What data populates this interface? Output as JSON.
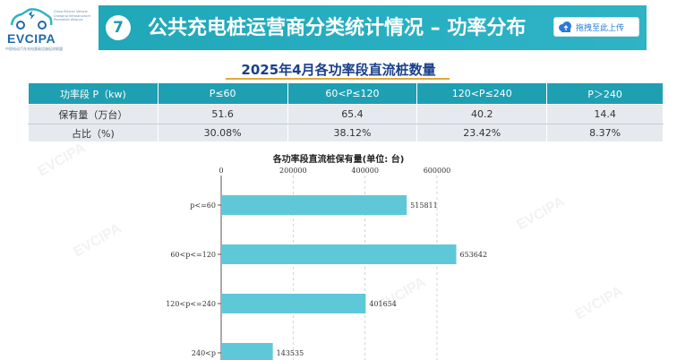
{
  "logo": {
    "name": "EVCIPA",
    "en_text": "China Electric Vehicle Charging Infrastructure Promotion Alliance",
    "cn_text": "中国电动汽车充电基础设施促进联盟"
  },
  "header": {
    "section_number": "7",
    "title": "公共充电桩运营商分类统计情况 – 功率分布",
    "upload_button": "拖拽至此上传"
  },
  "subtitle": "2025年4月各功率段直流桩数量",
  "table": {
    "headers": [
      "功率段 P（kw)",
      "P≤60",
      "60<P≤120",
      "120<P≤240",
      "P＞240"
    ],
    "rows": [
      [
        "保有量（万台）",
        "51.6",
        "65.4",
        "40.2",
        "14.4"
      ],
      [
        "占比（%)",
        "30.08%",
        "38.12%",
        "23.42%",
        "8.37%"
      ]
    ]
  },
  "chart_data": {
    "type": "bar",
    "orientation": "horizontal",
    "title": "各功率段直流桩保有量(单位: 台)",
    "categories": [
      "p<=60",
      "60<p<=120",
      "120<p<=240",
      "240<p"
    ],
    "values": [
      515811,
      653642,
      401654,
      143535
    ],
    "data_labels": [
      "515811",
      "653642",
      "401654",
      "143535"
    ],
    "x_ticks": [
      "0",
      "200000",
      "400000",
      "600000"
    ],
    "xlim": [
      0,
      700000
    ],
    "axis_position": "top",
    "grid": true,
    "bar_color": "#5fc8d8"
  },
  "watermark": "EVCIPA"
}
